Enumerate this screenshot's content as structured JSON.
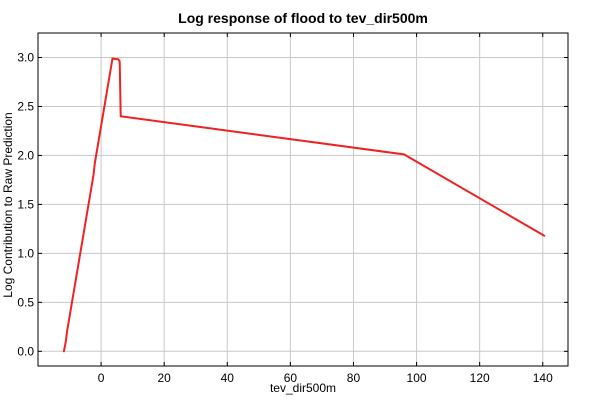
{
  "chart_data": {
    "type": "line",
    "title": "Log response of flood to tev_dir500m",
    "xlabel": "tev_dir500m",
    "ylabel": "Log Contribution to Raw Prediction",
    "xlim": [
      -20,
      148
    ],
    "ylim": [
      -0.15,
      3.25
    ],
    "xticks": [
      0,
      20,
      40,
      60,
      80,
      100,
      120,
      140
    ],
    "yticks": [
      0.0,
      0.5,
      1.0,
      1.5,
      2.0,
      2.5,
      3.0
    ],
    "xtick_labels": [
      "0",
      "20",
      "40",
      "60",
      "80",
      "100",
      "120",
      "140"
    ],
    "ytick_labels": [
      "0.0",
      "0.5",
      "1.0",
      "1.5",
      "2.0",
      "2.5",
      "3.0"
    ],
    "grid": true,
    "series": [
      {
        "color": "#ee2222",
        "x": [
          -11.8,
          -11.2,
          -10.8,
          -2.4,
          -2.0,
          3.6,
          5.5,
          5.9,
          6.2,
          96.0,
          140.5
        ],
        "y": [
          0.0,
          0.1,
          0.2,
          1.8,
          1.92,
          2.99,
          2.98,
          2.96,
          2.4,
          2.01,
          1.18
        ]
      }
    ]
  }
}
